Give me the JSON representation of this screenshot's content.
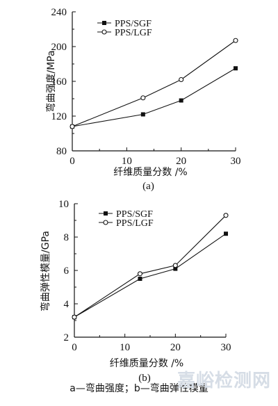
{
  "chart_data": [
    {
      "type": "line",
      "x": [
        0,
        13,
        20,
        30
      ],
      "xlabel": "纤维质量分数 /%",
      "ylabel": "弯曲强度/MPa",
      "xlim": [
        0,
        30
      ],
      "ylim": [
        80,
        240
      ],
      "xticks": [
        "0",
        "10",
        "20",
        "30"
      ],
      "yticks": [
        "80",
        "120",
        "160",
        "200",
        "240"
      ],
      "grid": false,
      "legend": "top-left",
      "panel_label": "(a)",
      "series": [
        {
          "name": "PPS/SGF",
          "marker": "filled-square",
          "values": [
            108,
            122,
            138,
            175
          ]
        },
        {
          "name": "PPS/LGF",
          "marker": "open-circle",
          "values": [
            108,
            141,
            162,
            207
          ]
        }
      ]
    },
    {
      "type": "line",
      "x": [
        0,
        13,
        20,
        30
      ],
      "xlabel": "纤维质量分数 /%",
      "ylabel": "弯曲弹性模量/GPa",
      "xlim": [
        0,
        30
      ],
      "ylim": [
        2,
        10
      ],
      "xticks": [
        "0",
        "10",
        "20",
        "30"
      ],
      "yticks": [
        "2",
        "4",
        "6",
        "8",
        "10"
      ],
      "grid": false,
      "legend": "top-left",
      "panel_label": "(b)",
      "series": [
        {
          "name": "PPS/SGF",
          "marker": "filled-square",
          "values": [
            3.2,
            5.5,
            6.1,
            8.2
          ]
        },
        {
          "name": "PPS/LGF",
          "marker": "open-circle",
          "values": [
            3.2,
            5.8,
            6.3,
            9.3
          ]
        }
      ]
    }
  ],
  "caption": "a—弯曲强度；b—弯曲弹性模量",
  "watermark": "嘉峪检测网",
  "colors": {
    "line": "#111111",
    "axis": "#111111"
  }
}
